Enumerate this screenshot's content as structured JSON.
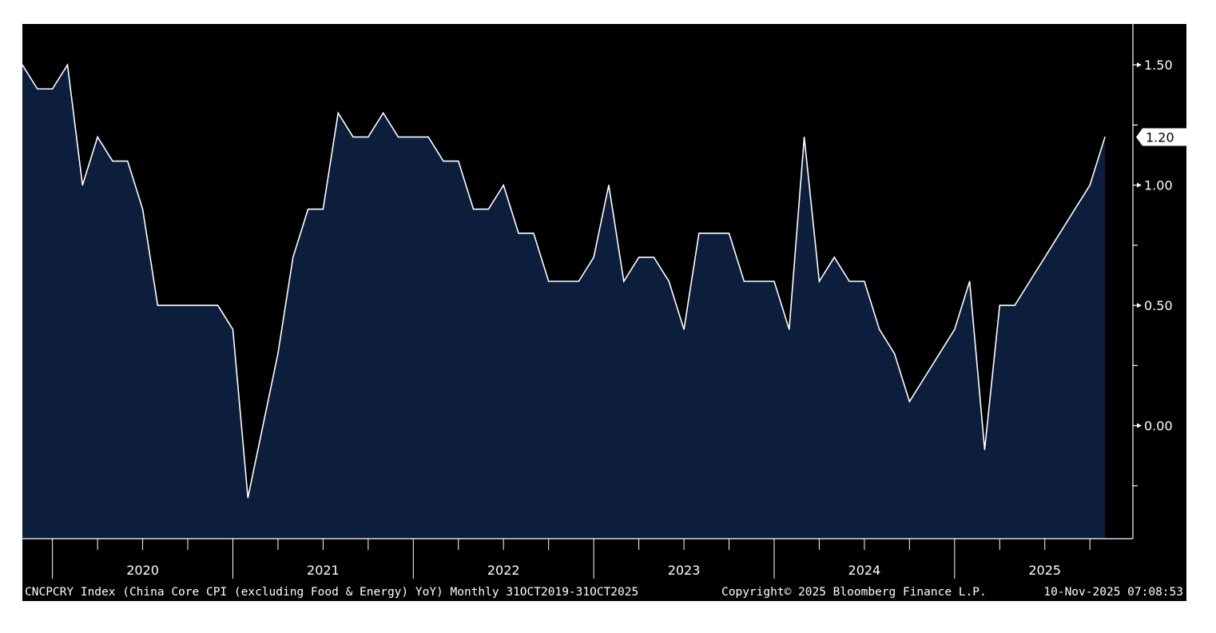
{
  "chart_data": {
    "type": "area",
    "series": [
      {
        "name": "CNCPCRY Index",
        "values": [
          1.5,
          1.4,
          1.4,
          1.5,
          1.0,
          1.2,
          1.1,
          1.1,
          0.9,
          0.5,
          0.5,
          0.5,
          0.5,
          0.5,
          0.4,
          -0.3,
          0.0,
          0.3,
          0.7,
          0.9,
          0.9,
          1.3,
          1.2,
          1.2,
          1.3,
          1.2,
          1.2,
          1.2,
          1.1,
          1.1,
          0.9,
          0.9,
          1.0,
          0.8,
          0.8,
          0.6,
          0.6,
          0.6,
          0.7,
          1.0,
          0.6,
          0.7,
          0.7,
          0.6,
          0.4,
          0.8,
          0.8,
          0.8,
          0.6,
          0.6,
          0.6,
          0.4,
          1.2,
          0.6,
          0.7,
          0.6,
          0.6,
          0.4,
          0.3,
          0.1,
          0.2,
          0.3,
          0.4,
          0.6,
          -0.1,
          0.5,
          0.5,
          0.6,
          0.7,
          0.8,
          0.9,
          1.0,
          1.2
        ]
      }
    ],
    "x_start": "2019-10-31",
    "x_end": "2025-10-31",
    "x_frequency": "monthly",
    "x_tick_labels": [
      "2020",
      "2021",
      "2022",
      "2023",
      "2024",
      "2025"
    ],
    "y_tick_labels": [
      "1.50",
      "1.00",
      "0.50",
      "0.00"
    ],
    "y_ticks": [
      1.5,
      1.0,
      0.5,
      0.0
    ],
    "y_minor_ticks": [
      1.25,
      0.75,
      0.25,
      -0.25
    ],
    "ylim": [
      -0.47,
      1.67
    ],
    "last_value_label": "1.20",
    "grid": false,
    "colors": {
      "background": "#000000",
      "fill": "#0c1e3c",
      "line": "#ffffff",
      "axis": "#ffffff"
    }
  },
  "footer": {
    "description": "CNCPCRY Index (China Core CPI (excluding Food & Energy) YoY) Monthly 31OCT2019-31OCT2025",
    "copyright": "Copyright© 2025 Bloomberg Finance L.P.",
    "timestamp": "10-Nov-2025 07:08:53"
  }
}
